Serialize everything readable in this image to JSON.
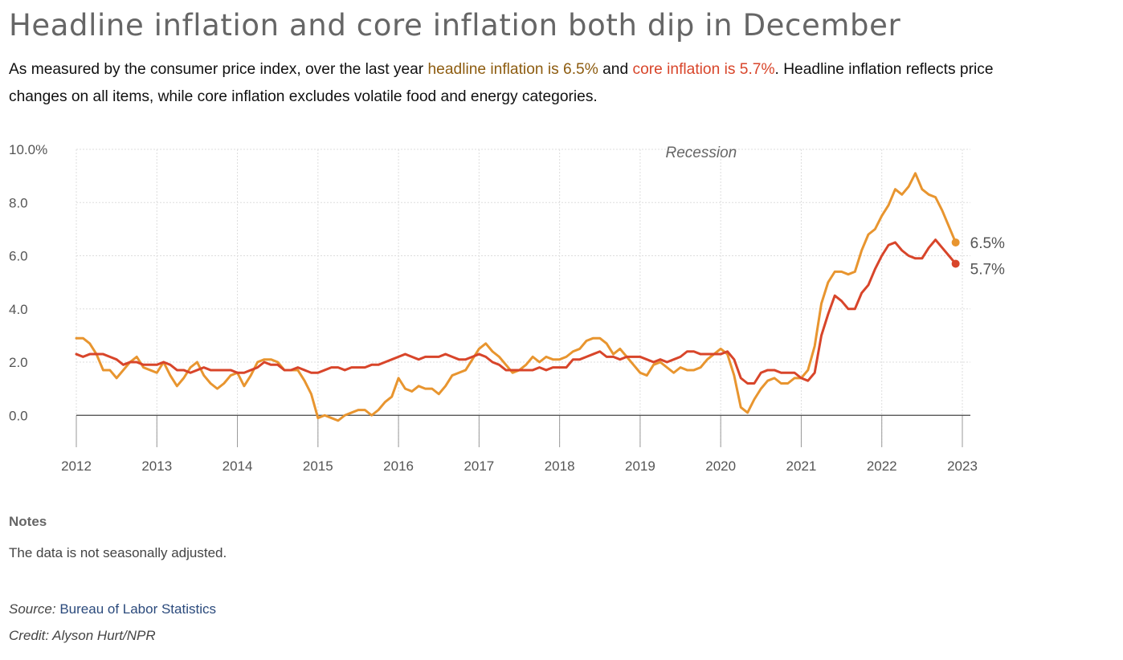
{
  "header": {
    "title": "Headline inflation and core inflation both dip in December",
    "subtitle_pre": "As measured by the consumer price index, over the last year ",
    "subtitle_headline": "headline inflation is 6.5%",
    "subtitle_mid": " and ",
    "subtitle_core": "core inflation is 5.7%",
    "subtitle_line1_end": ". Headline inflation reflects price",
    "subtitle_line2": "changes on all items, while core inflation excludes volatile food and energy categories."
  },
  "colors": {
    "headline": "#e8952f",
    "core": "#d8452a",
    "zero_line": "#444444",
    "grid": "#dddddd"
  },
  "chart_data": {
    "type": "line",
    "x_start": "2012-01",
    "x_frequency": "monthly",
    "xlim": [
      2012,
      2023
    ],
    "x_ticks": [
      2012,
      2013,
      2014,
      2015,
      2016,
      2017,
      2018,
      2019,
      2020,
      2021,
      2022,
      2023
    ],
    "ylim": [
      -1.2,
      10
    ],
    "y_ticks": [
      {
        "value": 10,
        "label": "10.0%"
      },
      {
        "value": 8,
        "label": "8.0"
      },
      {
        "value": 6,
        "label": "6.0"
      },
      {
        "value": 4,
        "label": "4.0"
      },
      {
        "value": 2,
        "label": "2.0"
      },
      {
        "value": 0,
        "label": "0.0"
      }
    ],
    "grid": true,
    "annotations": [
      {
        "text": "Recession"
      }
    ],
    "end_labels": {
      "headline": "6.5%",
      "core": "5.7%"
    },
    "series": [
      {
        "key": "headline",
        "values": [
          2.9,
          2.9,
          2.7,
          2.3,
          1.7,
          1.7,
          1.4,
          1.7,
          2.0,
          2.2,
          1.8,
          1.7,
          1.6,
          2.0,
          1.5,
          1.1,
          1.4,
          1.8,
          2.0,
          1.5,
          1.2,
          1.0,
          1.2,
          1.5,
          1.6,
          1.1,
          1.5,
          2.0,
          2.1,
          2.1,
          2.0,
          1.7,
          1.7,
          1.7,
          1.3,
          0.8,
          -0.1,
          0.0,
          -0.1,
          -0.2,
          0.0,
          0.1,
          0.2,
          0.2,
          0.0,
          0.2,
          0.5,
          0.7,
          1.4,
          1.0,
          0.9,
          1.1,
          1.0,
          1.0,
          0.8,
          1.1,
          1.5,
          1.6,
          1.7,
          2.1,
          2.5,
          2.7,
          2.4,
          2.2,
          1.9,
          1.6,
          1.7,
          1.9,
          2.2,
          2.0,
          2.2,
          2.1,
          2.1,
          2.2,
          2.4,
          2.5,
          2.8,
          2.9,
          2.9,
          2.7,
          2.3,
          2.5,
          2.2,
          1.9,
          1.6,
          1.5,
          1.9,
          2.0,
          1.8,
          1.6,
          1.8,
          1.7,
          1.7,
          1.8,
          2.1,
          2.3,
          2.5,
          2.3,
          1.5,
          0.3,
          0.1,
          0.6,
          1.0,
          1.3,
          1.4,
          1.2,
          1.2,
          1.4,
          1.4,
          1.7,
          2.6,
          4.2,
          5.0,
          5.4,
          5.4,
          5.3,
          5.4,
          6.2,
          6.8,
          7.0,
          7.5,
          7.9,
          8.5,
          8.3,
          8.6,
          9.1,
          8.5,
          8.3,
          8.2,
          7.7,
          7.1,
          6.5
        ]
      },
      {
        "key": "core",
        "values": [
          2.3,
          2.2,
          2.3,
          2.3,
          2.3,
          2.2,
          2.1,
          1.9,
          2.0,
          2.0,
          1.9,
          1.9,
          1.9,
          2.0,
          1.9,
          1.7,
          1.7,
          1.6,
          1.7,
          1.8,
          1.7,
          1.7,
          1.7,
          1.7,
          1.6,
          1.6,
          1.7,
          1.8,
          2.0,
          1.9,
          1.9,
          1.7,
          1.7,
          1.8,
          1.7,
          1.6,
          1.6,
          1.7,
          1.8,
          1.8,
          1.7,
          1.8,
          1.8,
          1.8,
          1.9,
          1.9,
          2.0,
          2.1,
          2.2,
          2.3,
          2.2,
          2.1,
          2.2,
          2.2,
          2.2,
          2.3,
          2.2,
          2.1,
          2.1,
          2.2,
          2.3,
          2.2,
          2.0,
          1.9,
          1.7,
          1.7,
          1.7,
          1.7,
          1.7,
          1.8,
          1.7,
          1.8,
          1.8,
          1.8,
          2.1,
          2.1,
          2.2,
          2.3,
          2.4,
          2.2,
          2.2,
          2.1,
          2.2,
          2.2,
          2.2,
          2.1,
          2.0,
          2.1,
          2.0,
          2.1,
          2.2,
          2.4,
          2.4,
          2.3,
          2.3,
          2.3,
          2.3,
          2.4,
          2.1,
          1.4,
          1.2,
          1.2,
          1.6,
          1.7,
          1.7,
          1.6,
          1.6,
          1.6,
          1.4,
          1.3,
          1.6,
          3.0,
          3.8,
          4.5,
          4.3,
          4.0,
          4.0,
          4.6,
          4.9,
          5.5,
          6.0,
          6.4,
          6.5,
          6.2,
          6.0,
          5.9,
          5.9,
          6.3,
          6.6,
          6.3,
          6.0,
          5.7
        ]
      }
    ]
  },
  "notes": {
    "heading": "Notes",
    "text": "The data is not seasonally adjusted."
  },
  "footer": {
    "source_label": "Source:",
    "source_link": "Bureau of Labor Statistics",
    "credit": "Credit: Alyson Hurt/NPR"
  }
}
